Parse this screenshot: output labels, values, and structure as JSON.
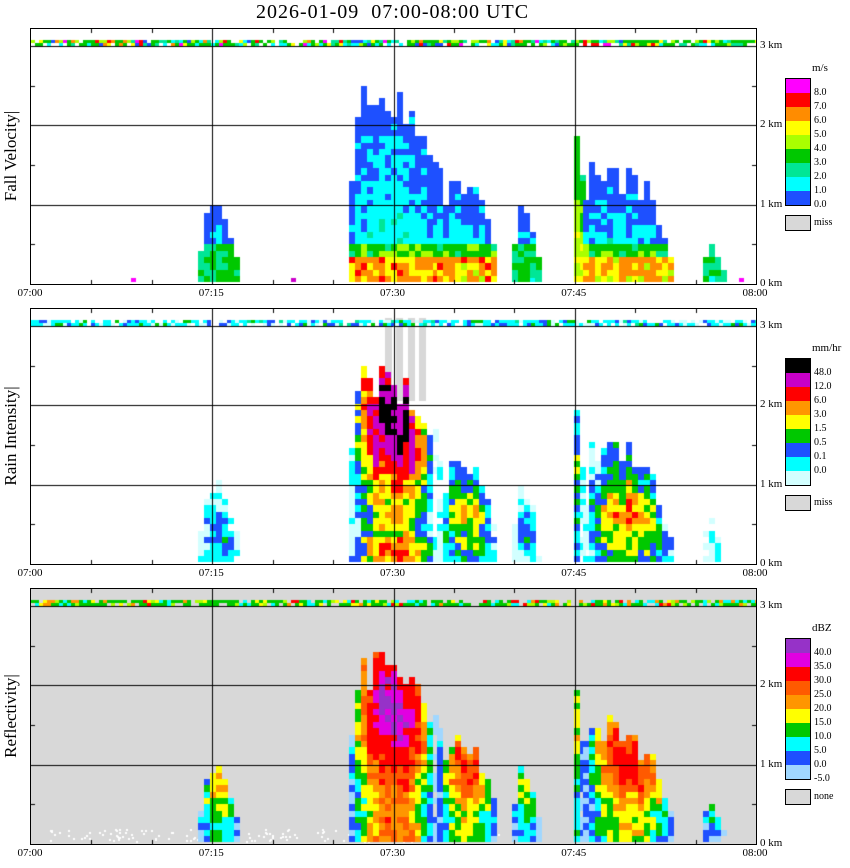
{
  "title": "2026-01-09  07:00-08:00 UTC",
  "chart_data": {
    "type": "heatmap",
    "title": "2026-01-09  07:00-08:00 UTC",
    "x_ticks": [
      "07:00",
      "07:15",
      "07:30",
      "07:45",
      "08:00"
    ],
    "x_range_minutes": [
      0,
      60
    ],
    "y_ticks": [
      "0 km",
      "1 km",
      "2 km",
      "3 km"
    ],
    "y_range_km": [
      0,
      3.2
    ],
    "grid": true,
    "panels": [
      {
        "id": "fall-velocity",
        "label": "Fall Velocity|",
        "units": "m/s",
        "background": "#FFFFFF",
        "colorbar": [
          {
            "color": "#FF00FF",
            "label": "8.0"
          },
          {
            "color": "#FF0000",
            "label": "7.0"
          },
          {
            "color": "#FF8C00",
            "label": "6.0"
          },
          {
            "color": "#FFFF00",
            "label": "5.0"
          },
          {
            "color": "#AAFF00",
            "label": "4.0"
          },
          {
            "color": "#00C800",
            "label": "3.0"
          },
          {
            "color": "#00E696",
            "label": "2.0"
          },
          {
            "color": "#00FFFF",
            "label": "1.0"
          },
          {
            "color": "#1E50FF",
            "label": "0.0"
          }
        ],
        "missing": {
          "color": "#D8D8D8",
          "label": "miss"
        },
        "value_colors_low_to_high": [
          "#1E50FF",
          "#00FFFF",
          "#00E696",
          "#00C800",
          "#AAFF00",
          "#FFFF00",
          "#FF8C00",
          "#FF0000",
          "#FF00FF"
        ],
        "stripe_palette": [
          [
            "#00C800",
            5
          ],
          [
            "#00E696",
            2
          ],
          [
            "#00FFFF",
            2
          ],
          [
            "#AAFF00",
            1.5
          ],
          [
            "#FFFF00",
            1
          ],
          [
            "#FF0000",
            0.8
          ],
          [
            "#FF00FF",
            0.6
          ],
          [
            "#1E50FF",
            0.8
          ],
          [
            "#FF8C00",
            0.5
          ]
        ],
        "specks": [
          {
            "t": 8.3,
            "color": "#FF00FF"
          },
          {
            "t": 21.5,
            "color": "#CC00CC"
          },
          {
            "t": 41.3,
            "color": "#00FFFF"
          },
          {
            "t": 58.6,
            "color": "#FF00FF"
          }
        ]
      },
      {
        "id": "rain-intensity",
        "label": "Rain Intensity|",
        "units": "mm/hr",
        "background": "#FFFFFF",
        "colorbar": [
          {
            "color": "#000000",
            "label": "48.0"
          },
          {
            "color": "#C800C8",
            "label": "12.0"
          },
          {
            "color": "#FF0000",
            "label": "6.0"
          },
          {
            "color": "#FF9600",
            "label": "3.0"
          },
          {
            "color": "#FFFF00",
            "label": "1.5"
          },
          {
            "color": "#00C800",
            "label": "0.5"
          },
          {
            "color": "#1E50FF",
            "label": "0.1"
          },
          {
            "color": "#00FFFF",
            "label": "0.0"
          },
          {
            "color": "#D2FFFF",
            "label": ""
          }
        ],
        "missing": {
          "color": "#D8D8D8",
          "label": "miss"
        },
        "stripe_palette": [
          [
            "#00FFFF",
            5
          ],
          [
            "#D2FFFF",
            2
          ],
          [
            "#1E50FF",
            1.5
          ],
          [
            "#00C800",
            1
          ],
          [
            "#00E696",
            0.8
          ]
        ],
        "miss_columns_min": [
          29.6,
          30.5,
          31.5,
          32.4
        ],
        "miss_span_km": [
          2.05,
          3.1
        ],
        "specks": []
      },
      {
        "id": "reflectivity",
        "label": "Reflectivity|",
        "units": "dBZ",
        "background": "#D8D8D8",
        "colorbar": [
          {
            "color": "#9632C8",
            "label": "40.0"
          },
          {
            "color": "#E100E1",
            "label": "35.0"
          },
          {
            "color": "#FF0000",
            "label": "30.0"
          },
          {
            "color": "#FF5A00",
            "label": "25.0"
          },
          {
            "color": "#FF9600",
            "label": "20.0"
          },
          {
            "color": "#FFFF00",
            "label": "15.0"
          },
          {
            "color": "#00C800",
            "label": "10.0"
          },
          {
            "color": "#00FFFF",
            "label": "5.0"
          },
          {
            "color": "#1E50FF",
            "label": "0.0"
          },
          {
            "color": "#A0D7FF",
            "label": "-5.0"
          }
        ],
        "missing": {
          "color": "#D8D8D8",
          "label": "none"
        },
        "stripe_palette": [
          [
            "#00C800",
            5
          ],
          [
            "#00FFFF",
            1.5
          ],
          [
            "#FFFF00",
            1
          ],
          [
            "#FF9600",
            0.8
          ],
          [
            "#FF0000",
            0.6
          ],
          [
            "#AAFF00",
            1
          ]
        ],
        "white_noise": true,
        "specks": []
      }
    ],
    "echoes": [
      {
        "t0": 13.8,
        "t1": 17.3,
        "profile": [
          [
            13.8,
            0.2
          ],
          [
            14.6,
            0.85
          ],
          [
            15.4,
            0.95
          ],
          [
            16.2,
            0.7
          ],
          [
            17.3,
            0.25
          ]
        ],
        "v": 0.55,
        "r": 0.3,
        "z": 0.5,
        "peak": 0.4,
        "jag": 0.18
      },
      {
        "t0": 26.3,
        "t1": 33.6,
        "profile": [
          [
            26.3,
            0.9
          ],
          [
            26.9,
            1.9
          ],
          [
            27.5,
            2.25
          ],
          [
            28.3,
            2.05
          ],
          [
            29.1,
            2.3
          ],
          [
            30.0,
            2.1
          ],
          [
            30.8,
            2.25
          ],
          [
            31.6,
            1.95
          ],
          [
            32.4,
            1.75
          ],
          [
            33.6,
            1.55
          ]
        ],
        "v": 1.0,
        "r": 1.0,
        "z": 1.0,
        "peak": 0.78,
        "jag": 0.22
      },
      {
        "t0": 33.6,
        "t1": 38.6,
        "profile": [
          [
            33.6,
            1.5
          ],
          [
            34.4,
            0.95
          ],
          [
            35.2,
            1.35
          ],
          [
            36.0,
            1.15
          ],
          [
            36.8,
            1.25
          ],
          [
            37.6,
            0.85
          ],
          [
            38.6,
            0.35
          ]
        ],
        "v": 0.9,
        "r": 0.55,
        "z": 0.7,
        "peak": 0.5,
        "jag": 0.2
      },
      {
        "t0": 39.8,
        "t1": 42.2,
        "profile": [
          [
            39.8,
            0.25
          ],
          [
            40.6,
            0.95
          ],
          [
            41.4,
            0.75
          ],
          [
            42.2,
            0.2
          ]
        ],
        "v": 0.5,
        "r": 0.3,
        "z": 0.45,
        "peak": 0.4,
        "jag": 0.15
      },
      {
        "t0": 44.9,
        "t1": 45.7,
        "profile": [
          [
            44.9,
            1.3
          ],
          [
            45.3,
            2.3
          ],
          [
            45.7,
            1.2
          ]
        ],
        "v": 0.7,
        "r": 0.5,
        "z": 0.55,
        "peak": 0.55,
        "jag": 0.1,
        "hot": true
      },
      {
        "t0": 45.7,
        "t1": 53.2,
        "profile": [
          [
            45.7,
            1.0
          ],
          [
            46.5,
            1.45
          ],
          [
            47.3,
            1.25
          ],
          [
            48.1,
            1.55
          ],
          [
            48.9,
            1.2
          ],
          [
            49.7,
            1.45
          ],
          [
            50.5,
            1.05
          ],
          [
            51.3,
            1.2
          ],
          [
            52.0,
            0.7
          ],
          [
            53.2,
            0.25
          ]
        ],
        "v": 0.85,
        "r": 0.62,
        "z": 0.75,
        "peak": 0.45,
        "jag": 0.18
      },
      {
        "t0": 55.6,
        "t1": 57.2,
        "profile": [
          [
            55.6,
            0.2
          ],
          [
            56.2,
            0.55
          ],
          [
            57.2,
            0.15
          ]
        ],
        "v": 0.4,
        "r": 0.18,
        "z": 0.3,
        "peak": 0.4,
        "jag": 0.12
      }
    ]
  }
}
